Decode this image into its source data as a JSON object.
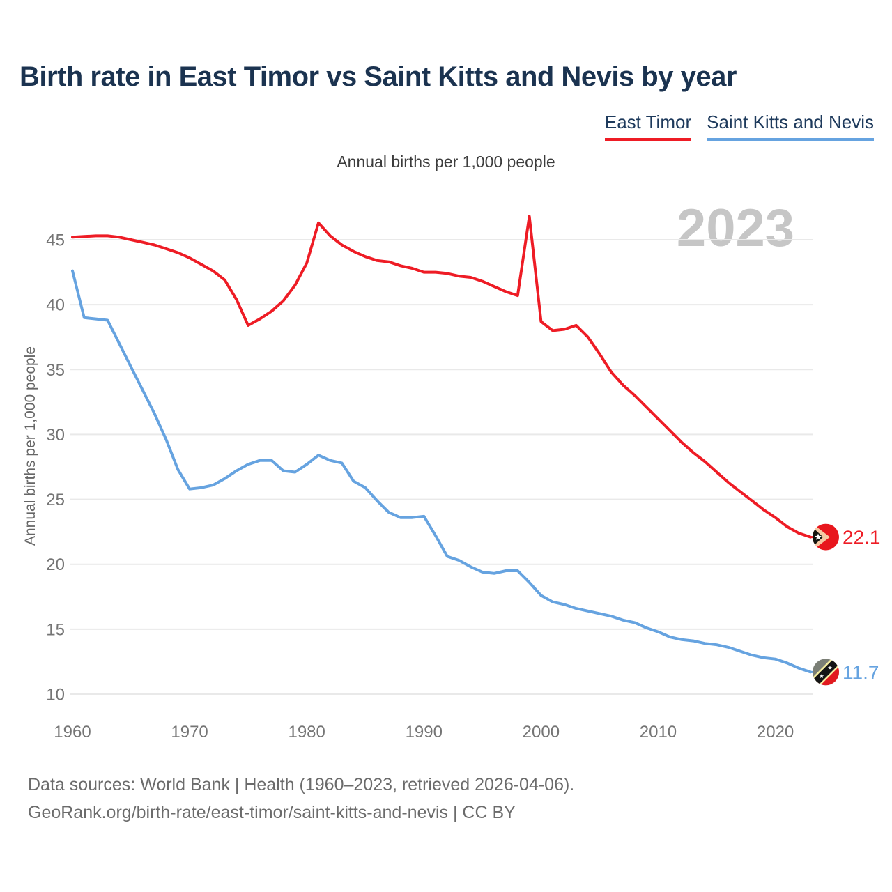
{
  "title": "Birth rate in East Timor vs Saint Kitts and Nevis by year",
  "subtitle": "Annual births per 1,000 people",
  "watermark": "2023",
  "legend": [
    {
      "label": "East Timor",
      "color": "#ee1c25"
    },
    {
      "label": "Saint Kitts and Nevis",
      "color": "#66a3e0"
    }
  ],
  "footer": {
    "line1": "Data sources: World Bank | Health (1960–2023, retrieved 2026-04-06).",
    "line2": "GeoRank.org/birth-rate/east-timor/saint-kitts-and-nevis | CC BY"
  },
  "chart_data": {
    "type": "line",
    "title": "Birth rate in East Timor vs Saint Kitts and Nevis by year",
    "xlabel": "",
    "ylabel": "Annual births per 1,000 people",
    "grid": true,
    "legend_position": "top-right",
    "x_ticks": [
      1960,
      1970,
      1980,
      1990,
      2000,
      2010,
      2020
    ],
    "y_ticks": [
      10,
      15,
      20,
      25,
      30,
      35,
      40,
      45
    ],
    "ylim": [
      9.2,
      47.4
    ],
    "xlim": [
      1960,
      2023
    ],
    "years": [
      1960,
      1961,
      1962,
      1963,
      1964,
      1965,
      1966,
      1967,
      1968,
      1969,
      1970,
      1971,
      1972,
      1973,
      1974,
      1975,
      1976,
      1977,
      1978,
      1979,
      1980,
      1981,
      1982,
      1983,
      1984,
      1985,
      1986,
      1987,
      1988,
      1989,
      1990,
      1991,
      1992,
      1993,
      1994,
      1995,
      1996,
      1997,
      1998,
      1999,
      2000,
      2001,
      2002,
      2003,
      2004,
      2005,
      2006,
      2007,
      2008,
      2009,
      2010,
      2011,
      2012,
      2013,
      2014,
      2015,
      2016,
      2017,
      2018,
      2019,
      2020,
      2021,
      2022,
      2023
    ],
    "series": [
      {
        "name": "East Timor",
        "color": "#ee1c25",
        "end_label": "22.1",
        "flag": "east-timor",
        "values": [
          45.2,
          45.25,
          45.3,
          45.3,
          45.2,
          45.0,
          44.8,
          44.6,
          44.3,
          44.0,
          43.6,
          43.1,
          42.6,
          41.9,
          40.4,
          38.4,
          38.9,
          39.5,
          40.3,
          41.5,
          43.2,
          46.3,
          45.3,
          44.6,
          44.1,
          43.7,
          43.4,
          43.3,
          43.0,
          42.8,
          42.5,
          42.5,
          42.4,
          42.2,
          42.1,
          41.8,
          41.4,
          41.0,
          40.7,
          46.8,
          38.7,
          38.0,
          38.1,
          38.4,
          37.5,
          36.2,
          34.8,
          33.8,
          33.0,
          32.1,
          31.2,
          30.3,
          29.4,
          28.6,
          27.9,
          27.1,
          26.3,
          25.6,
          24.9,
          24.2,
          23.6,
          22.9,
          22.4,
          22.1
        ]
      },
      {
        "name": "Saint Kitts and Nevis",
        "color": "#66a3e0",
        "end_label": "11.7",
        "flag": "saint-kitts-nevis",
        "values": [
          42.6,
          39.0,
          38.9,
          38.8,
          37.0,
          35.2,
          33.4,
          31.6,
          29.6,
          27.3,
          25.8,
          25.9,
          26.1,
          26.6,
          27.2,
          27.7,
          28.0,
          28.0,
          27.2,
          27.1,
          27.7,
          28.4,
          28.0,
          27.8,
          26.4,
          25.9,
          24.9,
          24.0,
          23.6,
          23.6,
          23.7,
          22.2,
          20.6,
          20.3,
          19.8,
          19.4,
          19.3,
          19.5,
          19.5,
          18.6,
          17.6,
          17.1,
          16.9,
          16.6,
          16.4,
          16.2,
          16.0,
          15.7,
          15.5,
          15.1,
          14.8,
          14.4,
          14.2,
          14.1,
          13.9,
          13.8,
          13.6,
          13.3,
          13.0,
          12.8,
          12.7,
          12.4,
          12.0,
          11.7
        ]
      }
    ],
    "style": {
      "grid_color": "#e9e9e9",
      "tick_color": "#757575",
      "line_width": 4
    }
  }
}
